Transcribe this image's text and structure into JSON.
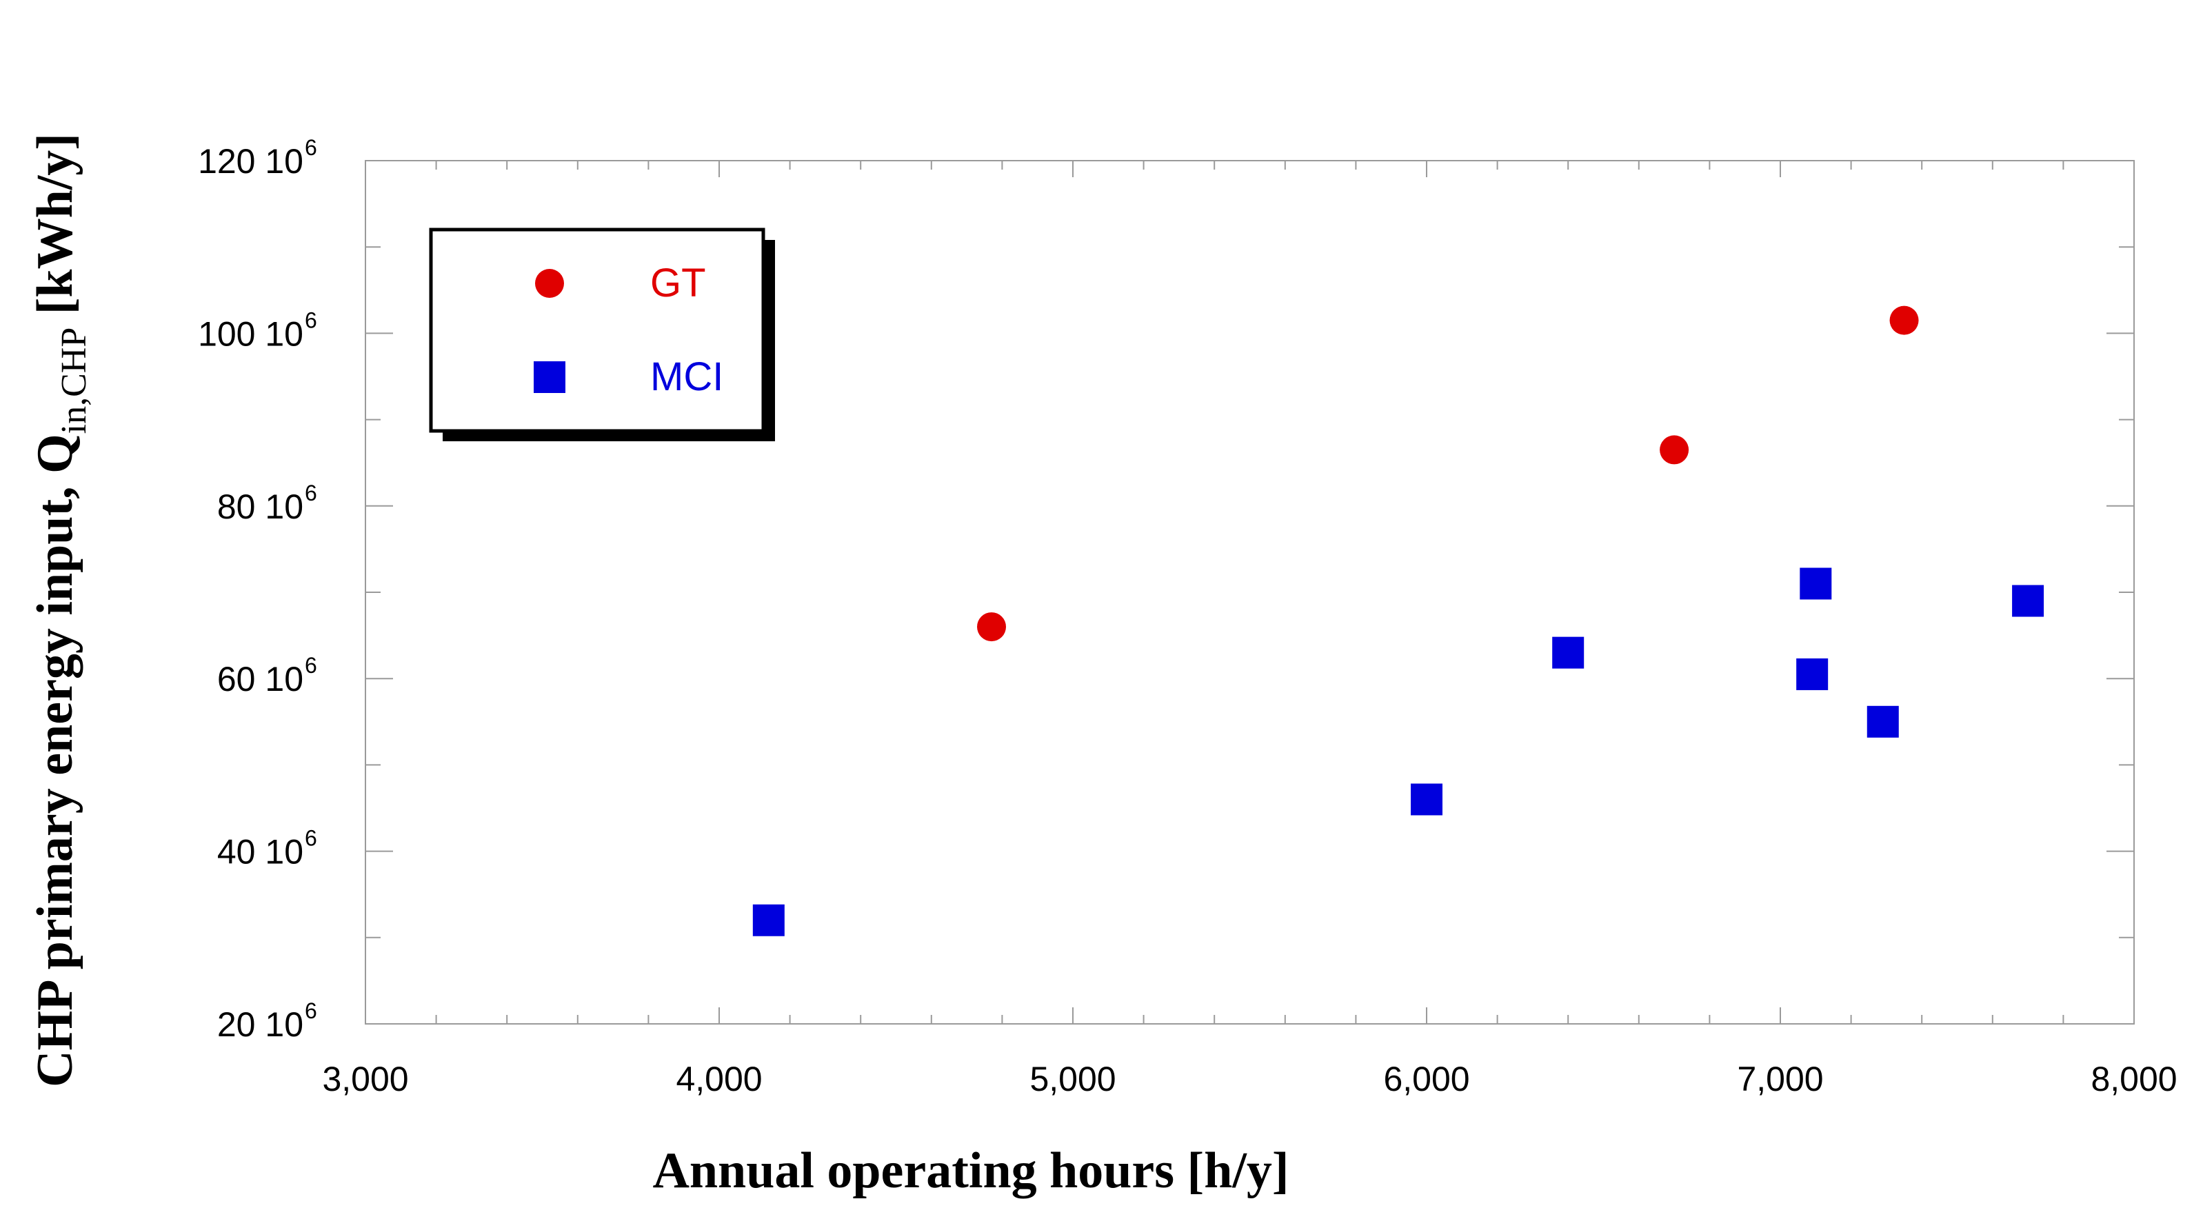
{
  "chart_data": {
    "type": "scatter",
    "title": "",
    "xlabel": "Annual operating hours [h/y]",
    "ylabel": {
      "prefix": "CHP primary energy input, Q",
      "subscript": "in,CHP",
      "suffix": " [kWh/y]"
    },
    "xlim": [
      3000,
      8000
    ],
    "ylim": [
      20000000,
      120000000
    ],
    "grid": false,
    "legend_position": "top-left",
    "x_ticks": [
      3000,
      4000,
      5000,
      6000,
      7000,
      8000
    ],
    "x_tick_labels": [
      "3,000",
      "4,000",
      "5,000",
      "6,000",
      "7,000",
      "8,000"
    ],
    "y_ticks": [
      20000000,
      40000000,
      60000000,
      80000000,
      100000000,
      120000000
    ],
    "y_tick_labels": [
      {
        "mantissa": "20 10",
        "exp": "6"
      },
      {
        "mantissa": "40 10",
        "exp": "6"
      },
      {
        "mantissa": "60 10",
        "exp": "6"
      },
      {
        "mantissa": "80 10",
        "exp": "6"
      },
      {
        "mantissa": "100 10",
        "exp": "6"
      },
      {
        "mantissa": "120 10",
        "exp": "6"
      }
    ],
    "series": [
      {
        "name": "GT",
        "marker": "circle",
        "color": "#e00000",
        "points": [
          {
            "x": 4770,
            "y": 66000000
          },
          {
            "x": 6700,
            "y": 86500000
          },
          {
            "x": 7350,
            "y": 101500000
          }
        ]
      },
      {
        "name": "MCI",
        "marker": "square",
        "color": "#0000dd",
        "points": [
          {
            "x": 4140,
            "y": 32000000
          },
          {
            "x": 6000,
            "y": 46000000
          },
          {
            "x": 6400,
            "y": 63000000
          },
          {
            "x": 7100,
            "y": 71000000
          },
          {
            "x": 7090,
            "y": 60500000
          },
          {
            "x": 7290,
            "y": 55000000
          },
          {
            "x": 7700,
            "y": 69000000
          }
        ]
      }
    ]
  }
}
